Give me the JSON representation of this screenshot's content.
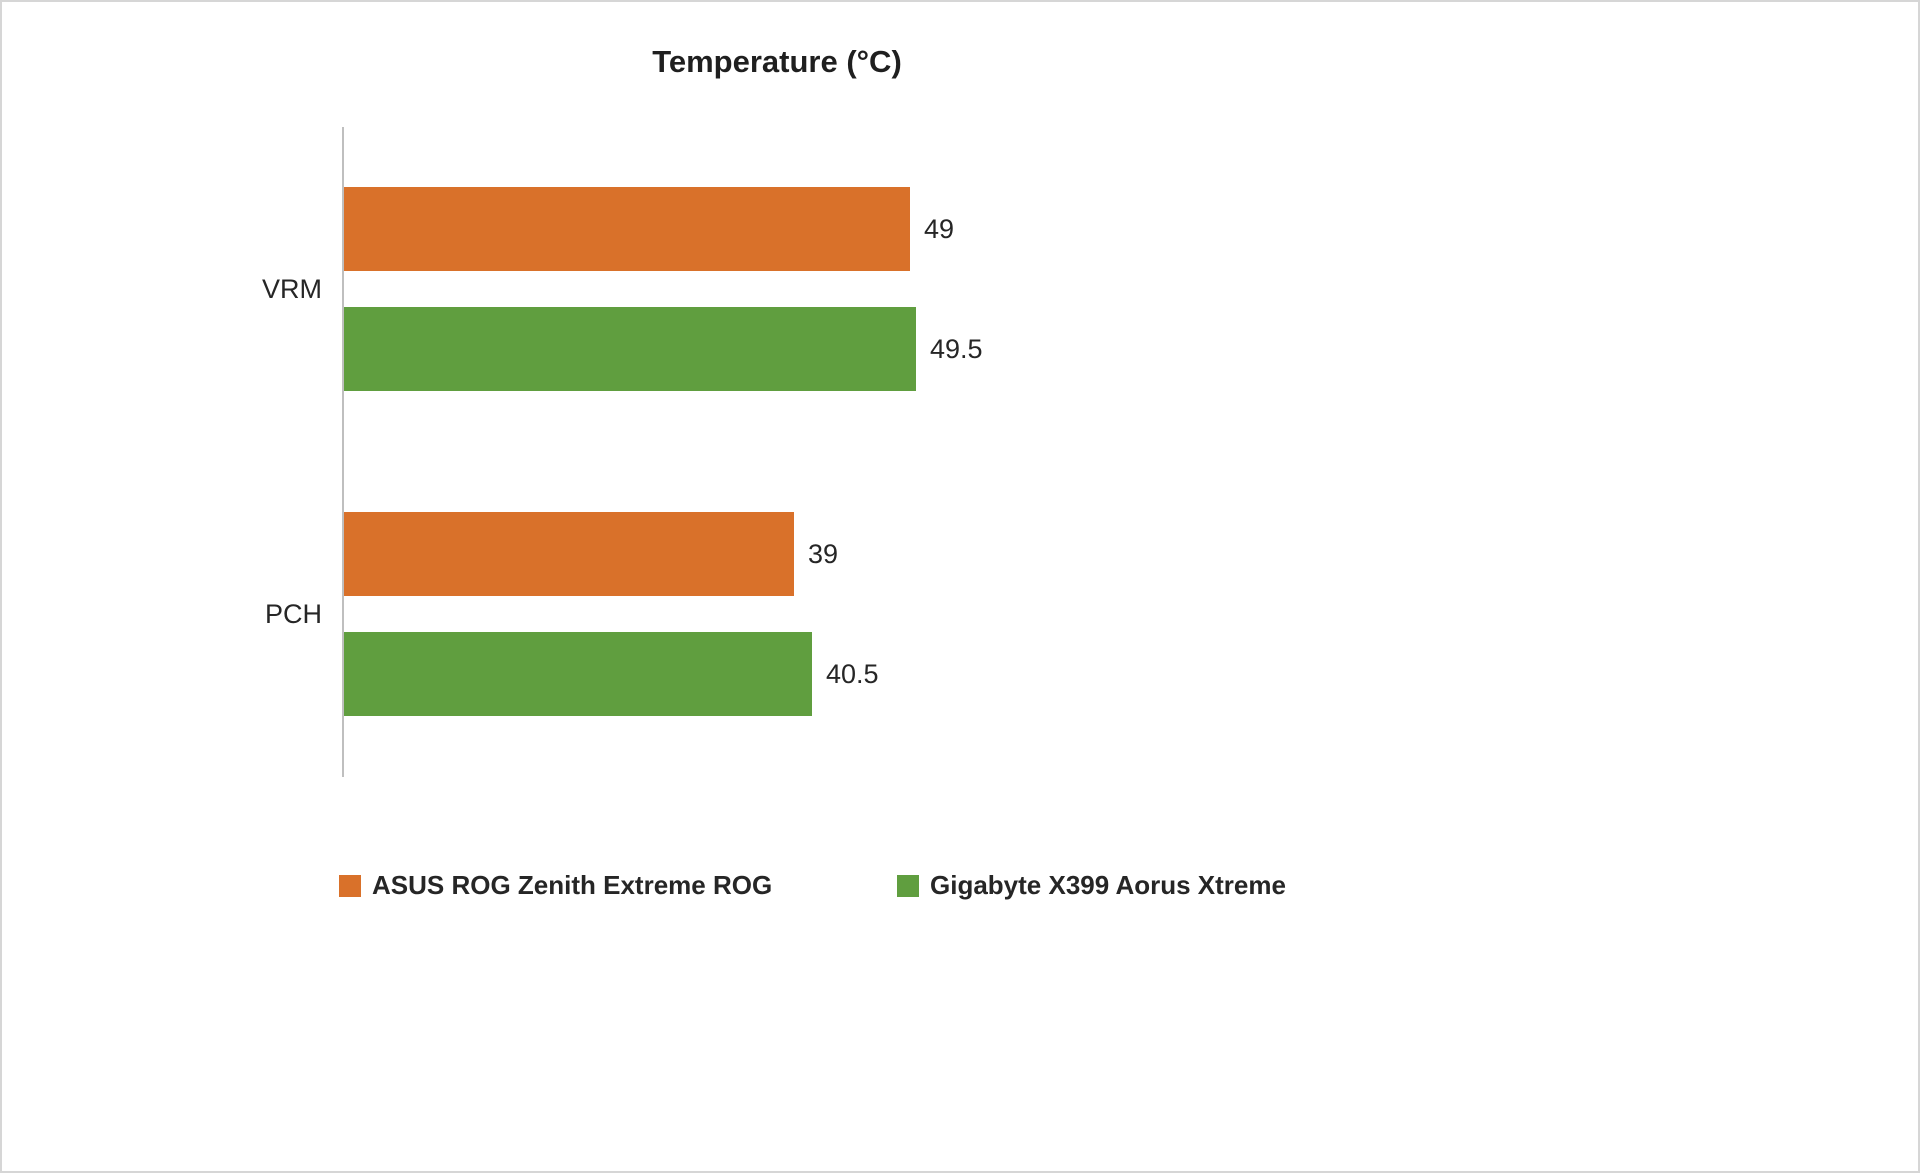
{
  "chart_data": {
    "type": "bar",
    "orientation": "horizontal",
    "title": "Temperature (°C)",
    "categories": [
      "VRM",
      "PCH"
    ],
    "series": [
      {
        "name": "ASUS ROG Zenith Extreme ROG",
        "color": "#D9712A",
        "values": [
          49,
          39
        ]
      },
      {
        "name": "Gigabyte X399 Aorus Xtreme",
        "color": "#609E3F",
        "values": [
          49.5,
          40.5
        ]
      }
    ],
    "xlim": [
      0,
      60
    ],
    "grid": false,
    "legend_position": "bottom",
    "value_labels_shown": true
  }
}
